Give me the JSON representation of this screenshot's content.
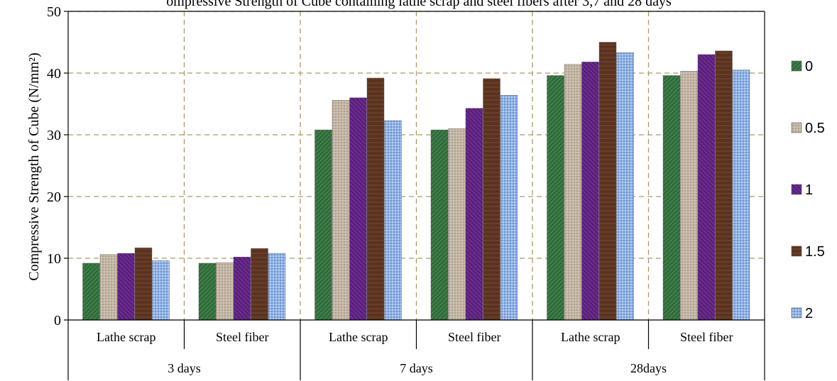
{
  "chart_data": {
    "type": "bar",
    "title": "Compressive Strength of Cube",
    "title_visible_fragment": "ompressive Strength of Cube containing lathe scrap and steel fibers after 3,7 and 28 days",
    "ylabel": "Compressive Strength of Cube (N/mm²)",
    "xlabel": "",
    "ylim": [
      0,
      50
    ],
    "yticks": [
      0,
      10,
      20,
      30,
      40,
      50
    ],
    "grid": true,
    "legend_position": "right",
    "groups": [
      {
        "label": "3 days",
        "categories": [
          "Lathe scrap",
          "Steel fiber"
        ]
      },
      {
        "label": "7 days",
        "categories": [
          "Lathe scrap",
          "Steel fiber"
        ]
      },
      {
        "label": "28days",
        "categories": [
          "Lathe scrap",
          "Steel fiber"
        ]
      }
    ],
    "categories": [
      "Lathe scrap",
      "Steel fiber",
      "Lathe scrap",
      "Steel fiber",
      "Lathe scrap",
      "Steel fiber"
    ],
    "series": [
      {
        "name": "0",
        "color": "#2f6b3a",
        "values": [
          9.2,
          9.2,
          30.8,
          30.8,
          39.6,
          39.6
        ]
      },
      {
        "name": "0.5",
        "color": "#c6b8a6",
        "values": [
          10.6,
          9.3,
          35.6,
          31.0,
          41.4,
          40.3
        ]
      },
      {
        "name": "1",
        "color": "#5a1f7a",
        "values": [
          10.8,
          10.2,
          36.0,
          34.3,
          41.8,
          43.0
        ]
      },
      {
        "name": "1.5",
        "color": "#5a3320",
        "values": [
          11.7,
          11.6,
          39.2,
          39.1,
          45.0,
          43.6
        ]
      },
      {
        "name": "2",
        "color": "#8fb2e6",
        "values": [
          9.6,
          10.8,
          32.3,
          36.4,
          43.3,
          40.5
        ]
      }
    ]
  }
}
